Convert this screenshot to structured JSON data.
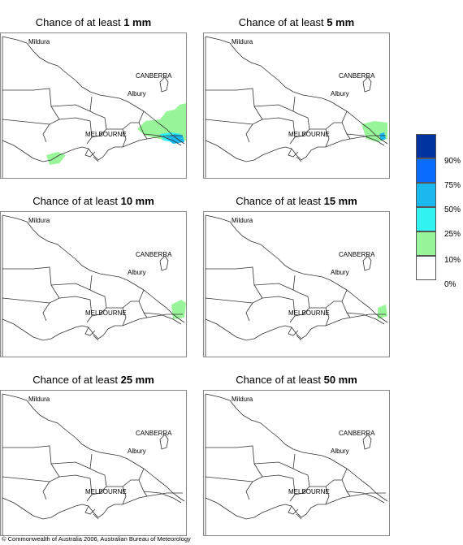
{
  "panels": [
    {
      "title_prefix": "Chance of at least",
      "amount": "1 mm"
    },
    {
      "title_prefix": "Chance of at least",
      "amount": "5 mm"
    },
    {
      "title_prefix": "Chance of at least",
      "amount": "10 mm"
    },
    {
      "title_prefix": "Chance of at least",
      "amount": "15 mm"
    },
    {
      "title_prefix": "Chance of at least",
      "amount": "25 mm"
    },
    {
      "title_prefix": "Chance of at least",
      "amount": "50 mm"
    }
  ],
  "cities": {
    "mildura": "Mildura",
    "canberra": "CANBERRA",
    "albury": "Albury",
    "melbourne": "MELBOURNE"
  },
  "legend": {
    "labels": [
      "90%",
      "75%",
      "50%",
      "25%",
      "10%",
      "0%"
    ],
    "colors": [
      "#0033a0",
      "#0a6cff",
      "#1ab8ee",
      "#33f2f2",
      "#99f599",
      "#ffffff"
    ]
  },
  "copyright": "© Commonwealth of Australia 2006, Australian Bureau of Meteorology"
}
